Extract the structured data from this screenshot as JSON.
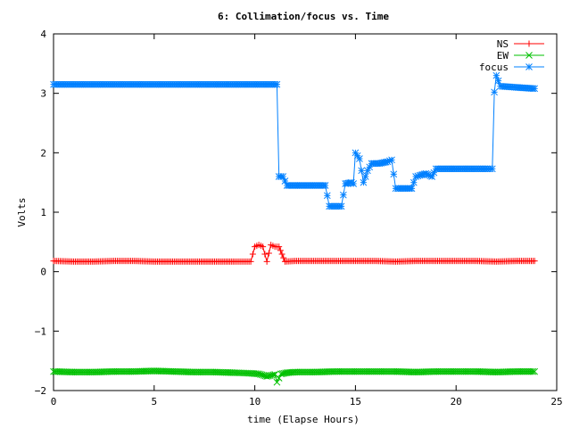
{
  "chart_data": {
    "type": "line",
    "title": "6: Collimation/focus vs. Time",
    "xlabel": "time (Elapse Hours)",
    "ylabel": "Volts",
    "xlim": [
      0,
      25
    ],
    "ylim": [
      -2,
      4
    ],
    "xticks": [
      0,
      5,
      10,
      15,
      20,
      25
    ],
    "yticks": [
      -2,
      -1,
      0,
      1,
      2,
      3,
      4
    ],
    "grid": false,
    "legend_position": "top-right",
    "series": [
      {
        "name": "NS",
        "color": "#ff0000",
        "marker": "plus",
        "x": [
          0,
          1,
          2,
          3,
          4,
          5,
          6,
          7,
          8,
          9,
          9.8,
          10,
          10.2,
          10.4,
          10.6,
          10.8,
          11.0,
          11.2,
          11.5,
          12,
          13,
          14,
          15,
          16,
          17,
          18,
          19,
          20,
          21,
          22,
          23,
          23.9
        ],
        "y": [
          0.18,
          0.17,
          0.17,
          0.18,
          0.18,
          0.17,
          0.17,
          0.17,
          0.17,
          0.17,
          0.17,
          0.42,
          0.45,
          0.42,
          0.17,
          0.45,
          0.42,
          0.42,
          0.17,
          0.18,
          0.18,
          0.18,
          0.18,
          0.18,
          0.17,
          0.18,
          0.18,
          0.18,
          0.18,
          0.17,
          0.18,
          0.18
        ]
      },
      {
        "name": "EW",
        "color": "#00c000",
        "marker": "cross",
        "x": [
          0,
          1,
          2,
          3,
          4,
          5,
          6,
          7,
          8,
          9,
          9.8,
          10.2,
          10.6,
          11.0,
          11.1,
          11.3,
          11.6,
          12,
          13,
          14,
          15,
          16,
          17,
          18,
          19,
          20,
          21,
          22,
          23,
          23.9
        ],
        "y": [
          -1.68,
          -1.69,
          -1.69,
          -1.68,
          -1.68,
          -1.67,
          -1.68,
          -1.69,
          -1.69,
          -1.7,
          -1.71,
          -1.72,
          -1.76,
          -1.73,
          -1.86,
          -1.72,
          -1.7,
          -1.69,
          -1.69,
          -1.68,
          -1.68,
          -1.68,
          -1.68,
          -1.69,
          -1.68,
          -1.68,
          -1.68,
          -1.69,
          -1.68,
          -1.68
        ]
      },
      {
        "name": "focus",
        "color": "#0080ff",
        "marker": "star",
        "x": [
          0,
          5,
          11.1,
          11.2,
          11.4,
          11.6,
          12,
          13,
          13.5,
          13.6,
          13.7,
          14.3,
          14.5,
          14.8,
          14.9,
          15.0,
          15.2,
          15.4,
          15.6,
          15.8,
          16.2,
          16.6,
          16.8,
          17.0,
          17.1,
          17.5,
          17.8,
          18.0,
          18.2,
          18.5,
          18.8,
          19.0,
          20,
          21,
          21.6,
          21.8,
          21.9,
          22.0,
          22.2,
          23,
          23.9
        ],
        "y": [
          3.15,
          3.15,
          3.15,
          1.6,
          1.6,
          1.45,
          1.45,
          1.45,
          1.45,
          1.28,
          1.1,
          1.1,
          1.48,
          1.5,
          1.48,
          2.0,
          1.9,
          1.5,
          1.7,
          1.82,
          1.82,
          1.85,
          1.88,
          1.4,
          1.4,
          1.4,
          1.4,
          1.6,
          1.62,
          1.65,
          1.6,
          1.73,
          1.73,
          1.73,
          1.73,
          1.73,
          3.02,
          3.3,
          3.12,
          3.1,
          3.08
        ]
      }
    ]
  }
}
